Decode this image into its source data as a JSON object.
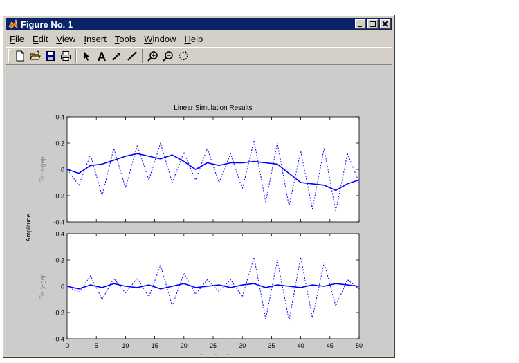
{
  "window": {
    "title": "Figure No. 1",
    "icon": "matlab-logo-icon",
    "controls": [
      "minimize-icon",
      "maximize-icon",
      "close-icon"
    ]
  },
  "menu": [
    "File",
    "Edit",
    "View",
    "Insert",
    "Tools",
    "Window",
    "Help"
  ],
  "toolbar": [
    {
      "name": "new-figure-button",
      "icon": "new-document-icon"
    },
    {
      "name": "open-file-button",
      "icon": "folder-open-icon"
    },
    {
      "name": "save-button",
      "icon": "floppy-disk-icon"
    },
    {
      "name": "print-button",
      "icon": "printer-icon"
    },
    {
      "name": "edit-plot-button",
      "icon": "arrow-pointer-icon"
    },
    {
      "name": "insert-text-button",
      "icon": "text-a-icon"
    },
    {
      "name": "insert-arrow-button",
      "icon": "arrow-icon"
    },
    {
      "name": "insert-line-button",
      "icon": "line-icon"
    },
    {
      "name": "zoom-in-button",
      "icon": "zoom-in-icon"
    },
    {
      "name": "zoom-out-button",
      "icon": "zoom-out-icon"
    },
    {
      "name": "rotate-3d-button",
      "icon": "rotate-icon"
    }
  ],
  "chart_data": {
    "type": "line",
    "title": "Linear Simulation Results",
    "xlabel": "Time (sec)",
    "ylabel": "Amplitude",
    "xlim": [
      0,
      50
    ],
    "xticks": [
      0,
      5,
      10,
      15,
      20,
      25,
      30,
      35,
      40,
      45,
      50
    ],
    "grid": false,
    "colors": {
      "line": "#0000ff",
      "axes_bg": "#ffffff",
      "figure_bg": "#cccccc"
    },
    "subplots": [
      {
        "ylabel": "To: x-gap",
        "ylim": [
          -0.4,
          0.4
        ],
        "yticks": [
          -0.4,
          -0.2,
          0,
          0.2,
          0.4
        ],
        "series": [
          {
            "style": "solid",
            "x": [
              0,
              2,
              4,
              6,
              8,
              10,
              12,
              14,
              16,
              18,
              20,
              22,
              24,
              26,
              28,
              30,
              32,
              34,
              36,
              38,
              40,
              42,
              44,
              46,
              48,
              50
            ],
            "y": [
              0,
              -0.03,
              0.03,
              0.04,
              0.07,
              0.1,
              0.12,
              0.1,
              0.08,
              0.11,
              0.06,
              0.0,
              0.05,
              0.03,
              0.05,
              0.05,
              0.06,
              0.05,
              0.04,
              -0.03,
              -0.1,
              -0.11,
              -0.12,
              -0.16,
              -0.11,
              -0.08
            ]
          },
          {
            "style": "dotted",
            "x": [
              0,
              2,
              4,
              6,
              8,
              10,
              12,
              14,
              16,
              18,
              20,
              22,
              24,
              26,
              28,
              30,
              32,
              34,
              36,
              38,
              40,
              42,
              44,
              46,
              48,
              50
            ],
            "y": [
              0,
              -0.12,
              0.11,
              -0.2,
              0.16,
              -0.14,
              0.18,
              -0.08,
              0.2,
              -0.1,
              0.13,
              -0.08,
              0.16,
              -0.1,
              0.12,
              -0.15,
              0.22,
              -0.25,
              0.2,
              -0.28,
              0.14,
              -0.3,
              0.16,
              -0.32,
              0.12,
              -0.1
            ]
          }
        ]
      },
      {
        "ylabel": "To: y-gap",
        "ylim": [
          -0.4,
          0.4
        ],
        "yticks": [
          -0.4,
          -0.2,
          0,
          0.2,
          0.4
        ],
        "series": [
          {
            "style": "solid",
            "x": [
              0,
              2,
              4,
              6,
              8,
              10,
              12,
              14,
              16,
              18,
              20,
              22,
              24,
              26,
              28,
              30,
              32,
              34,
              36,
              38,
              40,
              42,
              44,
              46,
              48,
              50
            ],
            "y": [
              0,
              -0.02,
              0.01,
              -0.01,
              0.02,
              0.0,
              -0.01,
              0.01,
              -0.02,
              0.0,
              0.02,
              -0.01,
              0.0,
              0.01,
              -0.01,
              0.01,
              0.02,
              -0.01,
              0.01,
              0.0,
              -0.01,
              0.01,
              0.0,
              0.02,
              0.01,
              0.0
            ]
          },
          {
            "style": "dotted",
            "x": [
              0,
              2,
              4,
              6,
              8,
              10,
              12,
              14,
              16,
              18,
              20,
              22,
              24,
              26,
              28,
              30,
              32,
              34,
              36,
              38,
              40,
              42,
              44,
              46,
              48,
              50
            ],
            "y": [
              0,
              -0.05,
              0.08,
              -0.1,
              0.06,
              -0.05,
              0.06,
              -0.08,
              0.16,
              -0.15,
              0.1,
              -0.06,
              0.05,
              -0.04,
              0.05,
              -0.08,
              0.22,
              -0.25,
              0.2,
              -0.26,
              0.22,
              -0.24,
              0.18,
              -0.15,
              0.05,
              -0.02
            ]
          }
        ]
      }
    ]
  }
}
